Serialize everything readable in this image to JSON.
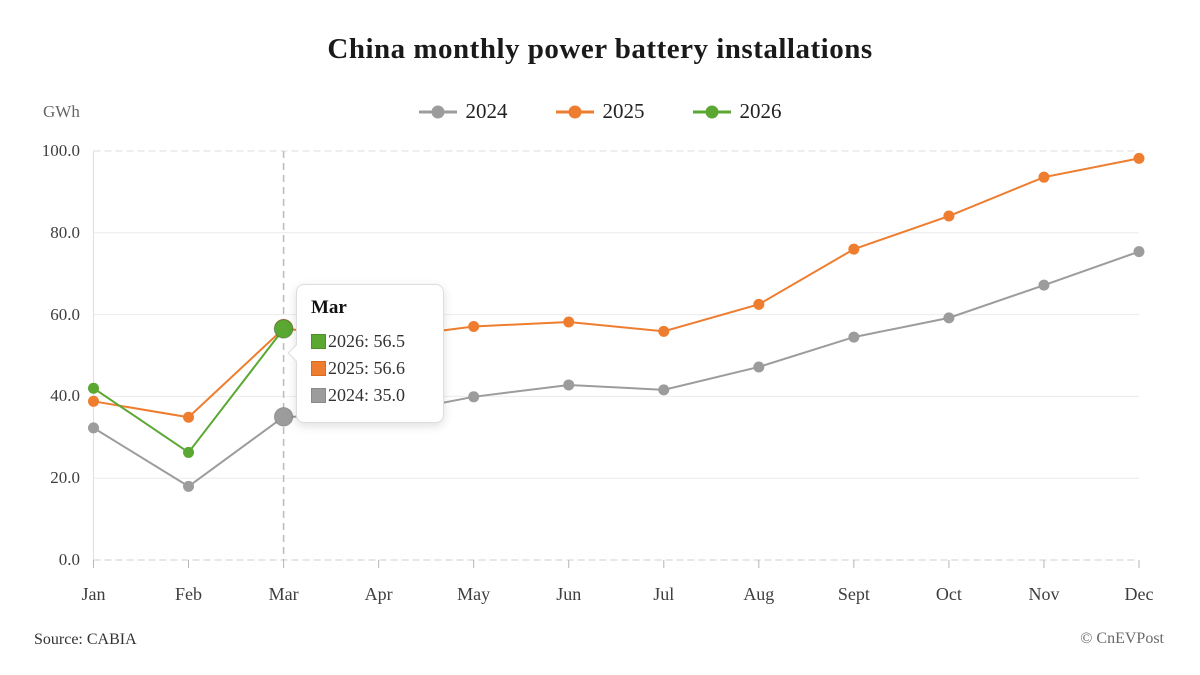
{
  "title": "China monthly power battery installations",
  "y_axis_unit": "GWh",
  "legend": [
    {
      "label": "2024",
      "color": "#9c9c9c"
    },
    {
      "label": "2025",
      "color": "#ee7d2f"
    },
    {
      "label": "2026",
      "color": "#5aa732"
    }
  ],
  "tooltip": {
    "header": "Mar",
    "rows": [
      {
        "text": "2026: 56.5",
        "color": "#5aa732",
        "border": "#4d9229"
      },
      {
        "text": "2025: 56.6",
        "color": "#ee7d2f",
        "border": "#d86b1f"
      },
      {
        "text": "2024: 35.0",
        "color": "#9c9c9c",
        "border": "#8a8a8a"
      }
    ]
  },
  "footer": {
    "source": "Source: CABIA",
    "copyright": "© CnEVPost"
  },
  "chart_data": {
    "type": "line",
    "title": "China monthly power battery installations",
    "xlabel": "",
    "ylabel": "GWh",
    "categories": [
      "Jan",
      "Feb",
      "Mar",
      "Apr",
      "May",
      "Jun",
      "Jul",
      "Aug",
      "Sept",
      "Oct",
      "Nov",
      "Dec"
    ],
    "series": [
      {
        "name": "2024",
        "color": "#9c9c9c",
        "values": [
          32.3,
          18.0,
          35.0,
          35.4,
          39.9,
          42.8,
          41.6,
          47.2,
          54.5,
          59.2,
          67.2,
          75.4
        ]
      },
      {
        "name": "2025",
        "color": "#ee7d2f",
        "values": [
          38.8,
          34.9,
          56.6,
          54.1,
          57.1,
          58.2,
          55.9,
          62.5,
          76.0,
          84.1,
          93.6,
          98.2
        ]
      },
      {
        "name": "2026",
        "color": "#5aa732",
        "values": [
          42.0,
          26.3,
          56.5,
          null,
          null,
          null,
          null,
          null,
          null,
          null,
          null,
          null
        ]
      }
    ],
    "ylim": [
      0,
      100
    ],
    "y_ticks": [
      "0.0",
      "20.0",
      "40.0",
      "60.0",
      "80.0",
      "100.0"
    ],
    "highlight_category": "Mar",
    "grid": true,
    "legend_position": "top"
  }
}
